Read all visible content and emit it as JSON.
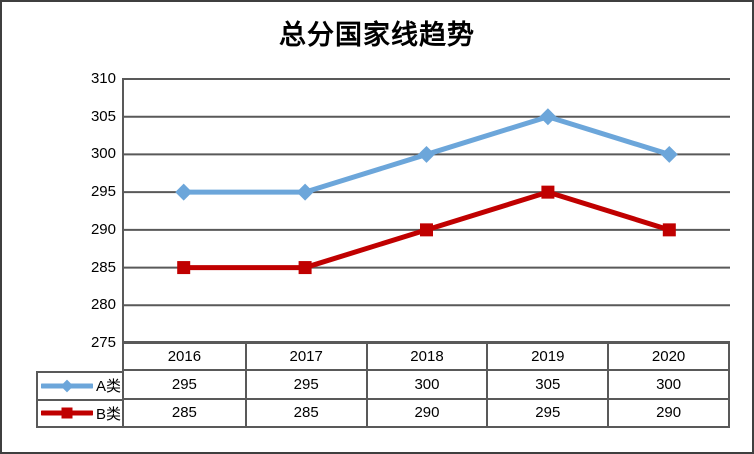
{
  "frame": {
    "background": "#FFFFFF",
    "border_color": "#3F3F3F"
  },
  "chart_data": {
    "type": "line",
    "title": "总分国家线趋势",
    "categories": [
      "2016",
      "2017",
      "2018",
      "2019",
      "2020"
    ],
    "series": [
      {
        "name": "A类",
        "values": [
          295,
          295,
          300,
          305,
          300
        ],
        "color": "#6CA6DA",
        "marker": "diamond"
      },
      {
        "name": "B类",
        "values": [
          285,
          285,
          290,
          295,
          290
        ],
        "color": "#C00000",
        "marker": "square"
      }
    ],
    "yticks": [
      310,
      305,
      300,
      295,
      290,
      285,
      280,
      275
    ],
    "ylim": [
      275,
      310
    ],
    "xlabel": "",
    "ylabel": "",
    "grid": "horizontal",
    "gridline_color": "#595959",
    "legend_position": "left-of-data-table",
    "data_table_shown": true
  }
}
